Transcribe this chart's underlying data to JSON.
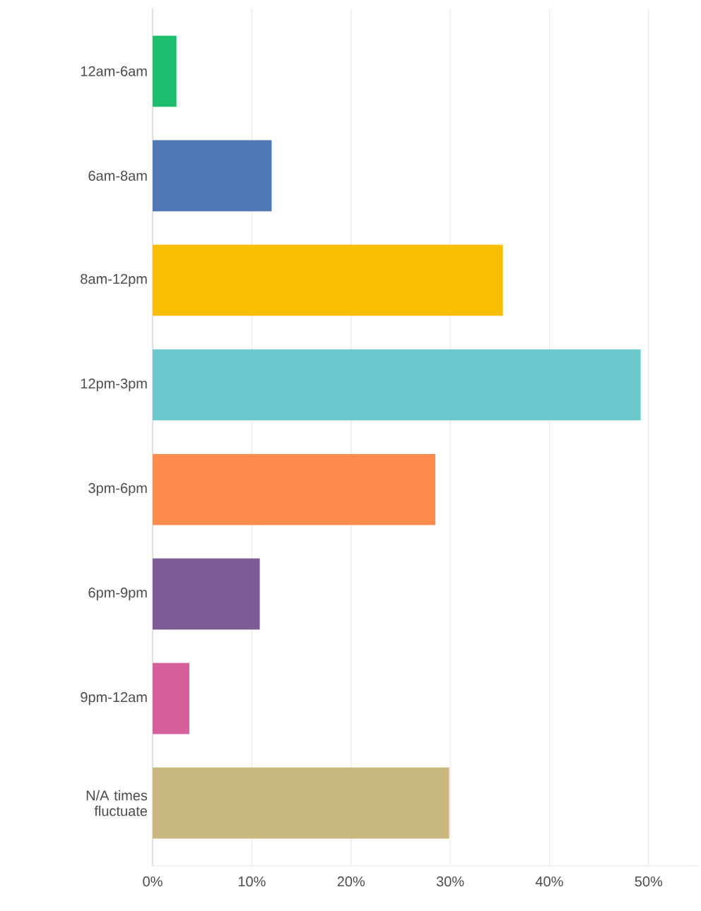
{
  "chart_data": {
    "type": "bar",
    "orientation": "horizontal",
    "categories": [
      "12am-6am",
      "6am-8am",
      "8am-12pm",
      "12pm-3pm",
      "3pm-6pm",
      "6pm-9pm",
      "9pm-12am",
      "N/A times fluctuate"
    ],
    "values": [
      2.4,
      12.0,
      35.3,
      49.2,
      28.5,
      10.8,
      3.7,
      29.9
    ],
    "colors": [
      "#1dbe6e",
      "#4e78b6",
      "#f8be00",
      "#6bc8cd",
      "#ff8b4f",
      "#7d5b94",
      "#d6619a",
      "#c9b87f"
    ],
    "xlim": [
      0,
      55
    ],
    "xticks": [
      {
        "value": 0,
        "label": "0%"
      },
      {
        "value": 10,
        "label": "10%"
      },
      {
        "value": 20,
        "label": "20%"
      },
      {
        "value": 30,
        "label": "30%"
      },
      {
        "value": 40,
        "label": "40%"
      },
      {
        "value": 50,
        "label": "50%"
      }
    ],
    "grid": "x"
  }
}
